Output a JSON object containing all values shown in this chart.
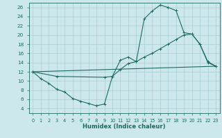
{
  "title": "",
  "xlabel": "Humidex (Indice chaleur)",
  "bg_color": "#cce8ed",
  "grid_color": "#aacdd4",
  "line_color": "#1a6b60",
  "xlim": [
    -0.5,
    23.5
  ],
  "ylim": [
    3.0,
    27.0
  ],
  "yticks": [
    4,
    6,
    8,
    10,
    12,
    14,
    16,
    18,
    20,
    22,
    24,
    26
  ],
  "xticks": [
    0,
    1,
    2,
    3,
    4,
    5,
    6,
    7,
    8,
    9,
    10,
    11,
    12,
    13,
    14,
    15,
    16,
    17,
    18,
    19,
    20,
    21,
    22,
    23
  ],
  "line1_x": [
    0,
    1,
    2,
    3,
    4,
    5,
    6,
    7,
    8,
    9,
    10,
    11,
    12,
    13,
    14,
    15,
    16,
    17,
    18,
    19,
    20,
    21,
    22,
    23
  ],
  "line1_y": [
    12.0,
    10.5,
    9.5,
    8.2,
    7.6,
    6.2,
    5.6,
    5.1,
    4.6,
    5.0,
    11.0,
    14.5,
    15.2,
    14.2,
    23.5,
    25.2,
    26.5,
    26.0,
    25.3,
    20.5,
    20.2,
    18.0,
    14.2,
    13.2
  ],
  "line2_x": [
    0,
    23
  ],
  "line2_y": [
    12.0,
    13.2
  ],
  "line3_x": [
    0,
    3,
    9,
    10,
    11,
    12,
    13,
    14,
    15,
    16,
    17,
    18,
    19,
    20,
    21,
    22,
    23
  ],
  "line3_y": [
    12.0,
    11.0,
    10.8,
    11.0,
    12.5,
    13.8,
    14.2,
    15.2,
    16.0,
    17.0,
    18.0,
    19.0,
    20.0,
    20.2,
    18.0,
    14.0,
    13.2
  ]
}
